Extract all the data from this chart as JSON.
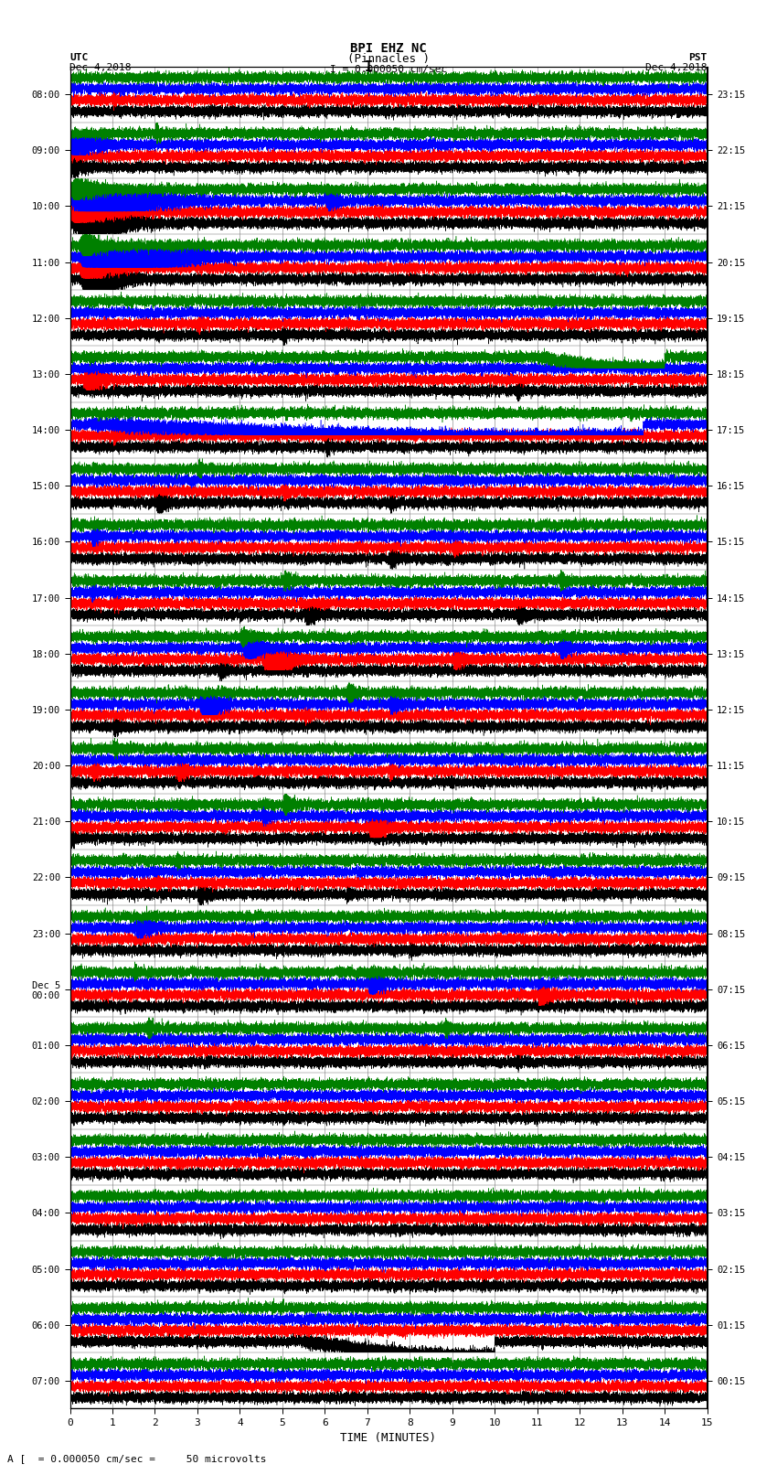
{
  "title_line1": "BPI EHZ NC",
  "title_line2": "(Pinnacles )",
  "scale_label": "I = 0.000050 cm/sec",
  "bottom_label": "A [  = 0.000050 cm/sec =     50 microvolts",
  "xlabel": "TIME (MINUTES)",
  "left_header_line1": "UTC",
  "left_header_line2": "Dec 4,2018",
  "right_header_line1": "PST",
  "right_header_line2": "Dec 4,2018",
  "left_times": [
    "08:00",
    "09:00",
    "10:00",
    "11:00",
    "12:00",
    "13:00",
    "14:00",
    "15:00",
    "16:00",
    "17:00",
    "18:00",
    "19:00",
    "20:00",
    "21:00",
    "22:00",
    "23:00",
    "Dec 5\n00:00",
    "01:00",
    "02:00",
    "03:00",
    "04:00",
    "05:00",
    "06:00",
    "07:00"
  ],
  "right_times": [
    "00:15",
    "01:15",
    "02:15",
    "03:15",
    "04:15",
    "05:15",
    "06:15",
    "07:15",
    "08:15",
    "09:15",
    "10:15",
    "11:15",
    "12:15",
    "13:15",
    "14:15",
    "15:15",
    "16:15",
    "17:15",
    "18:15",
    "19:15",
    "20:15",
    "21:15",
    "22:15",
    "23:15"
  ],
  "n_rows": 24,
  "traces_per_row": 4,
  "colors": [
    "black",
    "red",
    "blue",
    "green"
  ],
  "minutes": 15,
  "sample_rate": 50,
  "background_color": "white",
  "xmin": 0,
  "xmax": 15
}
